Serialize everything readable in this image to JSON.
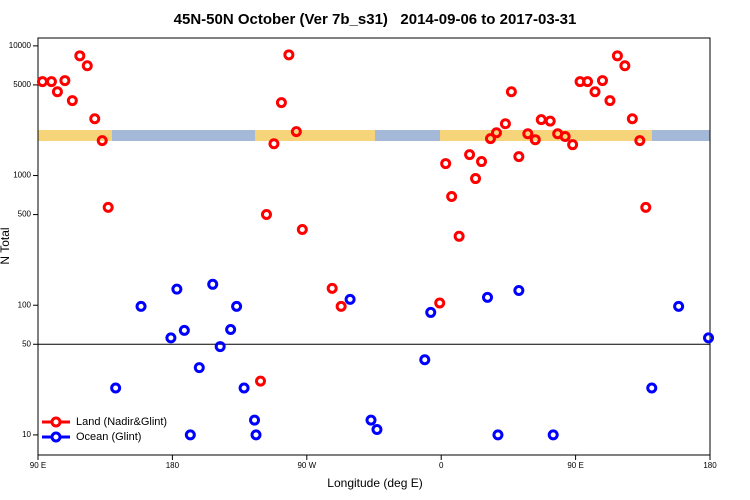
{
  "chart_data": {
    "type": "scatter",
    "title": "45N-50N October (Ver 7b_s31)   2014-09-06 to 2017-03-31",
    "xlabel": "Longitude (deg E)",
    "ylabel": "N Total",
    "log_y": true,
    "legend": "bottom-left",
    "hline": 50,
    "xlim": [
      90,
      540
    ],
    "ylim": [
      7,
      11500
    ],
    "xticks": [
      {
        "value": 90,
        "label": "90 E"
      },
      180,
      {
        "value": 270,
        "label": "90 W"
      },
      {
        "value": 360,
        "label": "0"
      },
      {
        "value": 450,
        "label": "90 E"
      },
      {
        "value": 540,
        "label": "180"
      }
    ],
    "yticks": [
      10,
      50,
      100,
      500,
      1000,
      5000,
      10000
    ],
    "series": [
      {
        "name": "Land (Nadir&Glint)",
        "color": "#ff0000",
        "x": [
          93,
          99,
          103,
          108,
          113,
          118,
          123,
          128,
          133,
          137,
          239,
          243,
          248,
          253,
          258,
          263,
          267,
          287,
          293,
          359,
          363,
          367,
          372,
          379,
          383,
          387,
          393,
          397,
          403,
          407,
          412,
          418,
          423,
          427,
          433,
          438,
          443,
          448,
          453,
          458,
          463,
          468,
          473,
          478,
          483,
          488,
          493,
          497
        ],
        "values": [
          5300,
          5300,
          4430,
          5400,
          3780,
          8380,
          7020,
          2740,
          1860,
          568,
          26,
          501,
          1760,
          3650,
          8530,
          2180,
          384,
          135,
          98,
          104,
          1237,
          689,
          340,
          1450,
          948,
          1282,
          1926,
          2140,
          2510,
          4430,
          1400,
          2100,
          1890,
          2700,
          2630,
          2100,
          2000,
          1730,
          5300,
          5300,
          4430,
          5400,
          3780,
          8380,
          7020,
          2740,
          1860,
          568
        ]
      },
      {
        "name": "Ocean (Glint)",
        "color": "#0000ff",
        "x": [
          142,
          159,
          179,
          183,
          188,
          192,
          198,
          207,
          212,
          219,
          223,
          228,
          235,
          236,
          299,
          313,
          317,
          349,
          353,
          391,
          398,
          412,
          435,
          501,
          519,
          539
        ],
        "values": [
          23,
          98,
          56,
          133,
          64,
          10,
          33,
          145,
          48,
          65,
          98,
          23,
          13,
          10,
          111,
          13,
          11,
          38,
          88,
          115,
          10,
          130,
          10,
          23,
          98,
          56
        ]
      }
    ]
  }
}
